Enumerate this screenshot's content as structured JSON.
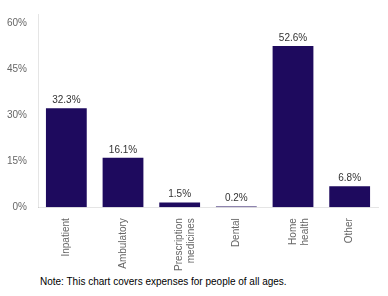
{
  "chart_data": {
    "type": "bar",
    "categories": [
      "Inpatient",
      "Ambulatory",
      "Prescription\nmedicines",
      "Dental",
      "Home\nhealth",
      "Other"
    ],
    "values": [
      32.3,
      16.1,
      1.5,
      0.2,
      52.6,
      6.8
    ],
    "value_labels": [
      "32.3%",
      "16.1%",
      "1.5%",
      "0.2%",
      "52.6%",
      "6.8%"
    ],
    "data_labels": true,
    "color": "#1e0a5e",
    "ylim": [
      0,
      63
    ],
    "yticks": [
      {
        "value": 0,
        "label": "0%"
      },
      {
        "value": 15,
        "label": "15%"
      },
      {
        "value": 30,
        "label": "30%"
      },
      {
        "value": 45,
        "label": "45%"
      },
      {
        "value": 60,
        "label": "60%"
      }
    ],
    "grid": false,
    "annotations": [
      "Note: This chart covers expenses for people of all ages."
    ]
  }
}
